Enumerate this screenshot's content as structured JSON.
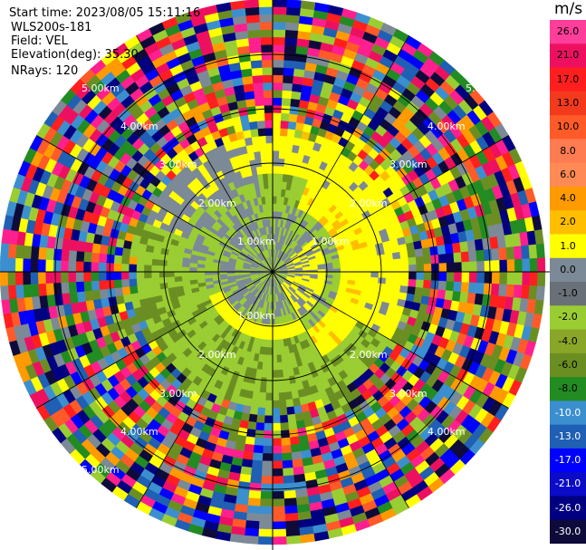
{
  "header": {
    "start_time": "Start time: 2023/08/05 15:11:16",
    "instrument": "WLS200s-181",
    "field": "Field: VEL",
    "elevation": "Elevation(deg): 35.30",
    "nrays": "NRays: 120"
  },
  "ring_labels": {
    "r1": "1.00km",
    "r2": "2.00km",
    "r3": "3.00km",
    "r4": "4.00km",
    "r5": "5.00km"
  },
  "colorbar": {
    "unit": "m/s",
    "ticks": [
      "26.0",
      "21.0",
      "17.0",
      "13.0",
      "10.0",
      "8.0",
      "6.0",
      "4.0",
      "2.0",
      "1.0",
      "0.0",
      "-1.0",
      "-2.0",
      "-4.0",
      "-6.0",
      "-8.0",
      "-10.0",
      "-13.0",
      "-17.0",
      "-21.0",
      "-26.0",
      "-30.0"
    ],
    "colors": [
      "#ff3d9a",
      "#ee1060",
      "#ff1f1f",
      "#f43a1d",
      "#ff5a28",
      "#ff7b52",
      "#ff8a55",
      "#ff9b00",
      "#ffbe00",
      "#ffff00",
      "#7c8996",
      "#6a7078",
      "#9acd32",
      "#8aa628",
      "#6b8e23",
      "#228b22",
      "#3b8fcf",
      "#1f5fb4",
      "#0000ff",
      "#0b0bc8",
      "#000080",
      "#0e0b3a"
    ]
  }
}
